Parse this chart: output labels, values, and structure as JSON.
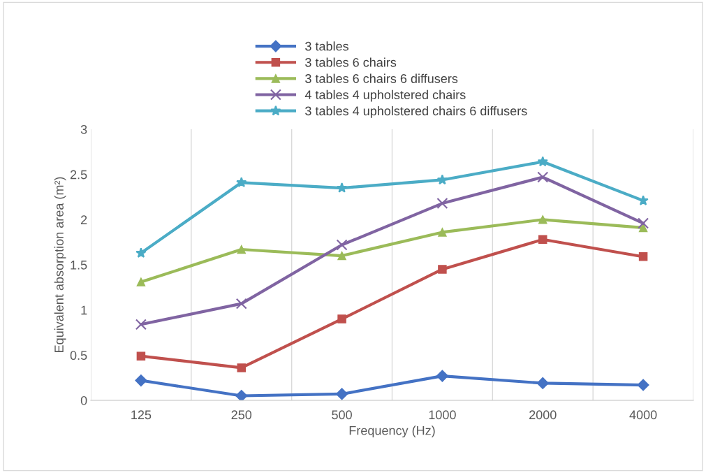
{
  "chart_data": {
    "type": "line",
    "xlabel": "Frequency (Hz)",
    "ylabel": "Equivalent absorption area (m²)",
    "categories": [
      "125",
      "250",
      "500",
      "1000",
      "2000",
      "4000"
    ],
    "ylim": [
      0,
      3
    ],
    "yticks": [
      0,
      0.5,
      1,
      1.5,
      2,
      2.5,
      3
    ],
    "grid": "x",
    "legend": "top",
    "series": [
      {
        "name": "3 tables",
        "color": "#4472c4",
        "marker": "diamond",
        "values": [
          0.22,
          0.05,
          0.07,
          0.27,
          0.19,
          0.17
        ]
      },
      {
        "name": "3 tables 6 chairs",
        "color": "#c0504d",
        "marker": "square",
        "values": [
          0.49,
          0.36,
          0.9,
          1.45,
          1.78,
          1.59
        ]
      },
      {
        "name": "3 tables 6 chairs 6 diffusers",
        "color": "#9bbb59",
        "marker": "triangle",
        "values": [
          1.31,
          1.67,
          1.6,
          1.86,
          2.0,
          1.91
        ]
      },
      {
        "name": "4 tables 4 upholstered chairs",
        "color": "#8064a2",
        "marker": "cross",
        "values": [
          0.84,
          1.07,
          1.72,
          2.18,
          2.47,
          1.96
        ]
      },
      {
        "name": "3 tables 4 upholstered chairs 6 diffusers",
        "color": "#4bacc6",
        "marker": "star",
        "values": [
          1.63,
          2.41,
          2.35,
          2.44,
          2.64,
          2.21
        ]
      }
    ]
  }
}
